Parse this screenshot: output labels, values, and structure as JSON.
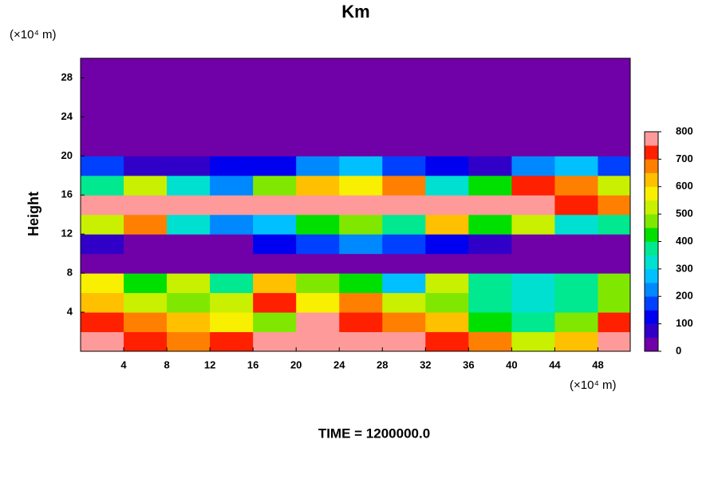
{
  "chart_data": {
    "type": "heatmap",
    "title": "Km",
    "x_unit": "(×10⁴ m)",
    "y_unit": "(×10⁴ m)",
    "y_label": "Height",
    "footer": "TIME = 1200000.0",
    "x": [
      2,
      6,
      10,
      14,
      18,
      22,
      26,
      30,
      34,
      38,
      42,
      46,
      50
    ],
    "y": [
      1,
      3,
      5,
      7,
      9,
      11,
      13,
      15,
      17,
      19,
      21,
      23,
      25,
      27,
      29
    ],
    "z": [
      [
        750,
        700,
        650,
        700,
        750,
        800,
        800,
        800,
        700,
        650,
        500,
        600,
        800
      ],
      [
        700,
        650,
        600,
        550,
        450,
        800,
        700,
        650,
        600,
        400,
        350,
        450,
        700
      ],
      [
        600,
        500,
        450,
        500,
        700,
        550,
        650,
        500,
        450,
        350,
        300,
        350,
        450
      ],
      [
        550,
        400,
        500,
        350,
        600,
        450,
        400,
        250,
        500,
        350,
        300,
        350,
        450
      ],
      [
        0,
        0,
        0,
        0,
        0,
        0,
        0,
        0,
        0,
        0,
        0,
        0,
        0
      ],
      [
        50,
        30,
        40,
        20,
        100,
        150,
        200,
        150,
        100,
        50,
        30,
        40,
        20
      ],
      [
        500,
        650,
        300,
        200,
        250,
        400,
        450,
        350,
        600,
        400,
        500,
        300,
        350
      ],
      [
        800,
        750,
        780,
        800,
        800,
        800,
        780,
        750,
        800,
        780,
        800,
        700,
        650
      ],
      [
        350,
        500,
        300,
        200,
        450,
        600,
        550,
        650,
        300,
        400,
        700,
        650,
        500
      ],
      [
        150,
        80,
        60,
        100,
        120,
        200,
        250,
        180,
        100,
        80,
        200,
        250,
        150
      ],
      [
        0,
        0,
        0,
        0,
        0,
        0,
        0,
        0,
        0,
        0,
        0,
        0,
        0
      ],
      [
        0,
        0,
        0,
        0,
        0,
        0,
        0,
        0,
        0,
        0,
        0,
        0,
        0
      ],
      [
        0,
        0,
        0,
        0,
        0,
        0,
        0,
        0,
        0,
        0,
        0,
        0,
        0
      ],
      [
        0,
        0,
        0,
        0,
        0,
        0,
        0,
        0,
        0,
        0,
        0,
        0,
        0
      ],
      [
        0,
        0,
        0,
        0,
        0,
        0,
        0,
        0,
        0,
        0,
        0,
        0,
        0
      ]
    ],
    "xlim": [
      0,
      51
    ],
    "ylim": [
      0,
      30
    ],
    "xticks": [
      4,
      8,
      12,
      16,
      20,
      24,
      28,
      32,
      36,
      40,
      44,
      48
    ],
    "yticks": [
      4,
      8,
      12,
      16,
      20,
      24,
      28
    ],
    "zlim": [
      0,
      800
    ],
    "colorbar_ticks": [
      0,
      100,
      200,
      300,
      400,
      500,
      600,
      700,
      800
    ],
    "colors": [
      "#7000a8",
      "#3000c8",
      "#0000f0",
      "#0040ff",
      "#0088ff",
      "#00c0ff",
      "#00e0d0",
      "#00e890",
      "#00e000",
      "#80e800",
      "#c8f000",
      "#f8f000",
      "#ffc000",
      "#ff8000",
      "#ff2000",
      "#ff9a9a"
    ]
  }
}
